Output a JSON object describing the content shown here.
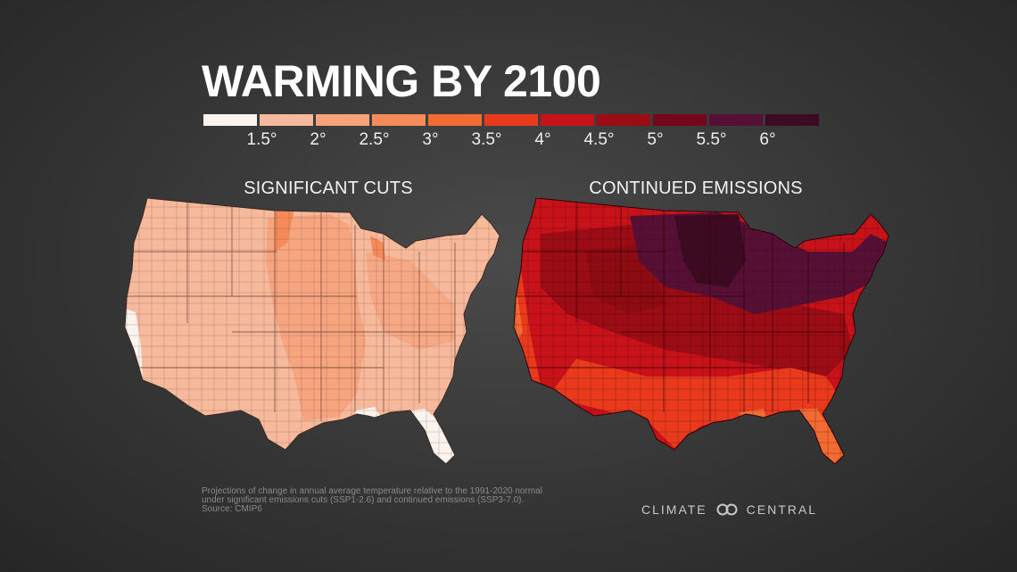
{
  "title": "WARMING BY 2100",
  "legend": {
    "colors": [
      "#fbf3ee",
      "#f7b99c",
      "#f6a37c",
      "#f48b58",
      "#f26b32",
      "#ea3a1e",
      "#c8121a",
      "#9b0c14",
      "#74081a",
      "#571035",
      "#3c0a22"
    ],
    "labels": [
      "1.5°",
      "2°",
      "2.5°",
      "3°",
      "3.5°",
      "4°",
      "4.5°",
      "5°",
      "5.5°",
      "6°"
    ]
  },
  "maps": {
    "left_title": "SIGNIFICANT CUTS",
    "right_title": "CONTINUED EMISSIONS"
  },
  "footnote": {
    "line1": "Projections of change in annual average temperature relative to the 1991-2020 normal",
    "line2": "under significant emissions cuts (SSP1-2.6) and continued emissions (SSP3-7.0).",
    "line3": "Source: CMIP6"
  },
  "logo": {
    "left": "CLIMATE",
    "right": "CENTRAL"
  }
}
